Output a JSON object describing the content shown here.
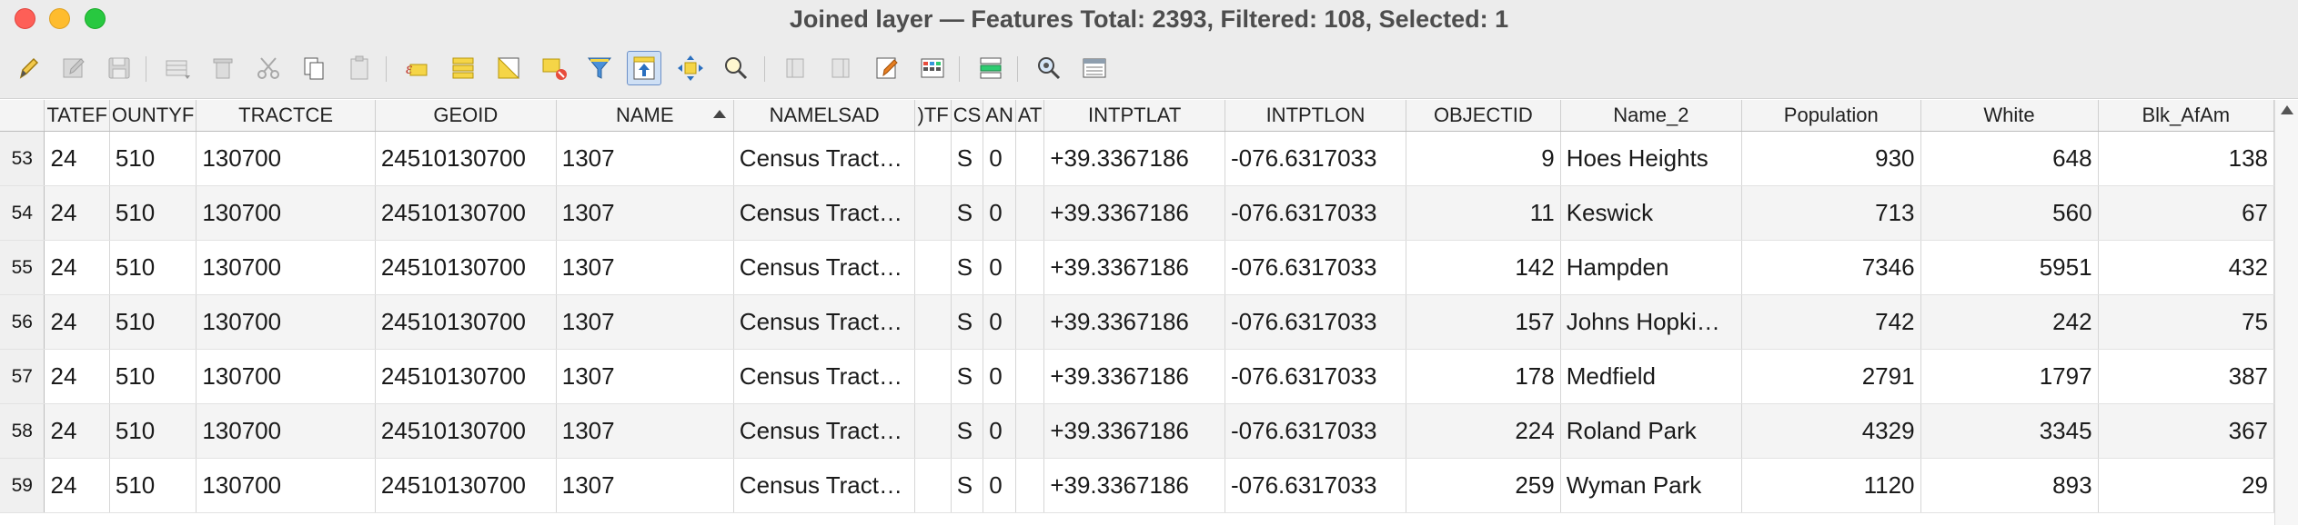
{
  "window": {
    "title": "Joined layer — Features Total: 2393, Filtered: 108, Selected: 1"
  },
  "toolbar": {
    "buttons": [
      {
        "name": "toggle-editing-icon",
        "enabled": true
      },
      {
        "name": "toggle-multi-edit-icon",
        "enabled": false
      },
      {
        "name": "save-edits-icon",
        "enabled": false
      },
      {
        "name": "add-feature-icon",
        "enabled": false
      },
      {
        "name": "delete-selected-icon",
        "enabled": false
      },
      {
        "name": "cut-icon",
        "enabled": false
      },
      {
        "name": "copy-icon",
        "enabled": true
      },
      {
        "name": "paste-icon",
        "enabled": false
      },
      {
        "name": "select-by-expression-icon",
        "enabled": true
      },
      {
        "name": "select-all-icon",
        "enabled": true
      },
      {
        "name": "invert-selection-icon",
        "enabled": true
      },
      {
        "name": "deselect-all-icon",
        "enabled": true
      },
      {
        "name": "filter-select-icon",
        "enabled": true
      },
      {
        "name": "move-selection-to-top-icon",
        "enabled": true,
        "active": true
      },
      {
        "name": "pan-to-selected-icon",
        "enabled": true
      },
      {
        "name": "zoom-to-selected-icon",
        "enabled": true
      },
      {
        "name": "new-field-icon",
        "enabled": false
      },
      {
        "name": "delete-field-icon",
        "enabled": false
      },
      {
        "name": "field-calculator-icon",
        "enabled": true
      },
      {
        "name": "conditional-formatting-icon",
        "enabled": true
      },
      {
        "name": "dock-table-icon",
        "enabled": true
      },
      {
        "name": "actions-icon",
        "enabled": true
      },
      {
        "name": "switch-form-view-icon",
        "enabled": true
      }
    ]
  },
  "table": {
    "columns": [
      {
        "key": "STATEFP",
        "label": "TATEF"
      },
      {
        "key": "COUNTYFP",
        "label": "OUNTYF"
      },
      {
        "key": "TRACTCE",
        "label": "TRACTCE"
      },
      {
        "key": "GEOID",
        "label": "GEOID"
      },
      {
        "key": "NAME",
        "label": "NAME",
        "sorted": "ascending"
      },
      {
        "key": "NAMELSAD",
        "label": "NAMELSAD"
      },
      {
        "key": "MTFCC",
        "label": "TF("
      },
      {
        "key": "FUNCSTAT",
        "label": "CS"
      },
      {
        "key": "ALAND",
        "label": "AN"
      },
      {
        "key": "AWATER",
        "label": "AT"
      },
      {
        "key": "INTPTLAT",
        "label": "INTPTLAT"
      },
      {
        "key": "INTPTLON",
        "label": "INTPTLON"
      },
      {
        "key": "OBJECTID",
        "label": "OBJECTID"
      },
      {
        "key": "Name_2",
        "label": "Name_2"
      },
      {
        "key": "Population",
        "label": "Population"
      },
      {
        "key": "White",
        "label": "White"
      },
      {
        "key": "Blk_AfAm",
        "label": "Blk_AfAm"
      }
    ],
    "rows": [
      {
        "row_number": "53",
        "cells": [
          "24",
          "510",
          "130700",
          "24510130700",
          "1307",
          "Census Tract…",
          "",
          "S",
          "0",
          "",
          "+39.3367186",
          "-076.6317033",
          "9",
          "Hoes Heights",
          "930",
          "648",
          "138"
        ]
      },
      {
        "row_number": "54",
        "cells": [
          "24",
          "510",
          "130700",
          "24510130700",
          "1307",
          "Census Tract…",
          "",
          "S",
          "0",
          "",
          "+39.3367186",
          "-076.6317033",
          "11",
          "Keswick",
          "713",
          "560",
          "67"
        ]
      },
      {
        "row_number": "55",
        "cells": [
          "24",
          "510",
          "130700",
          "24510130700",
          "1307",
          "Census Tract…",
          "",
          "S",
          "0",
          "",
          "+39.3367186",
          "-076.6317033",
          "142",
          "Hampden",
          "7346",
          "5951",
          "432"
        ]
      },
      {
        "row_number": "56",
        "cells": [
          "24",
          "510",
          "130700",
          "24510130700",
          "1307",
          "Census Tract…",
          "",
          "S",
          "0",
          "",
          "+39.3367186",
          "-076.6317033",
          "157",
          "Johns Hopki…",
          "742",
          "242",
          "75"
        ]
      },
      {
        "row_number": "57",
        "cells": [
          "24",
          "510",
          "130700",
          "24510130700",
          "1307",
          "Census Tract…",
          "",
          "S",
          "0",
          "",
          "+39.3367186",
          "-076.6317033",
          "178",
          "Medfield",
          "2791",
          "1797",
          "387"
        ]
      },
      {
        "row_number": "58",
        "cells": [
          "24",
          "510",
          "130700",
          "24510130700",
          "1307",
          "Census Tract…",
          "",
          "S",
          "0",
          "",
          "+39.3367186",
          "-076.6317033",
          "224",
          "Roland Park",
          "4329",
          "3345",
          "367"
        ]
      },
      {
        "row_number": "59",
        "cells": [
          "24",
          "510",
          "130700",
          "24510130700",
          "1307",
          "Census Tract…",
          "",
          "S",
          "0",
          "",
          "+39.3367186",
          "-076.6317033",
          "259",
          "Wyman Park",
          "1120",
          "893",
          "29"
        ]
      }
    ]
  }
}
